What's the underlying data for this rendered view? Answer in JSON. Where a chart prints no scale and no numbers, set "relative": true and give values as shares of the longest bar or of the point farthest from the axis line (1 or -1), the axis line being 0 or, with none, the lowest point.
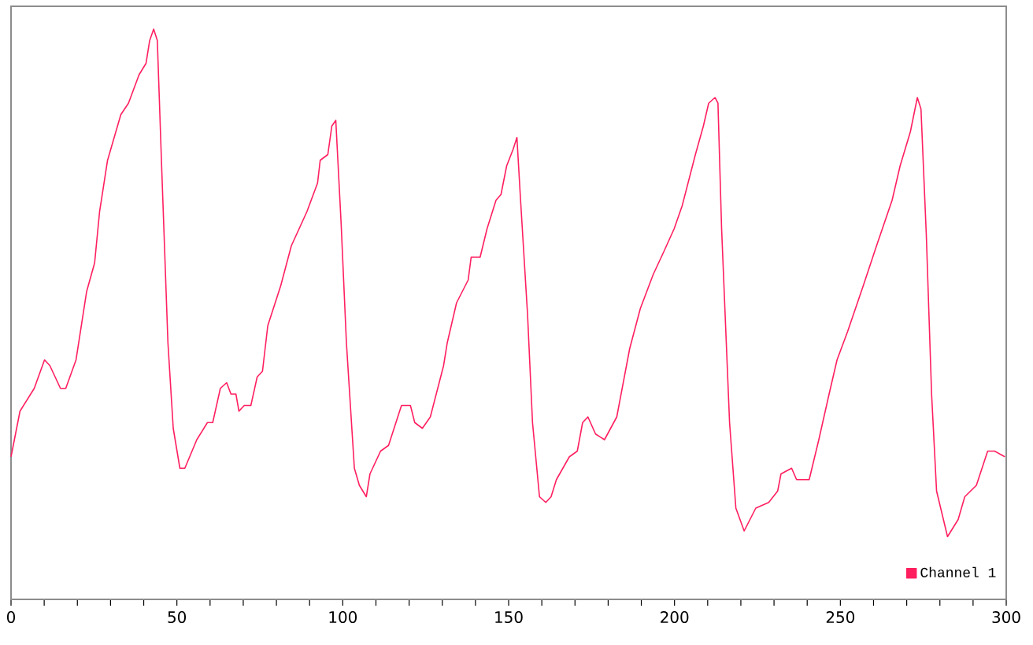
{
  "chart_data": {
    "type": "line",
    "relative": true,
    "legend": "bottom right",
    "marker": "none",
    "line_style": "solid",
    "xlim": [
      0,
      300
    ],
    "xticks": [
      0,
      {
        "value": 10,
        "label": null
      },
      {
        "value": 20,
        "label": null
      },
      {
        "value": 30,
        "label": null
      },
      {
        "value": 40,
        "label": null
      },
      50,
      {
        "value": 60,
        "label": null
      },
      {
        "value": 70,
        "label": null
      },
      {
        "value": 80,
        "label": null
      },
      {
        "value": 90,
        "label": null
      },
      100,
      {
        "value": 110,
        "label": null
      },
      {
        "value": 120,
        "label": null
      },
      {
        "value": 130,
        "label": null
      },
      {
        "value": 140,
        "label": null
      },
      150,
      {
        "value": 160,
        "label": null
      },
      {
        "value": 170,
        "label": null
      },
      {
        "value": 180,
        "label": null
      },
      {
        "value": 190,
        "label": null
      },
      200,
      {
        "value": 210,
        "label": null
      },
      {
        "value": 220,
        "label": null
      },
      {
        "value": 230,
        "label": null
      },
      {
        "value": 240,
        "label": null
      },
      250,
      {
        "value": 260,
        "label": null
      },
      {
        "value": 270,
        "label": null
      },
      {
        "value": 280,
        "label": null
      },
      {
        "value": 290,
        "label": null
      },
      300
    ],
    "series": [
      {
        "name": "Channel 1",
        "color": "#ff1f5f",
        "x": [
          0,
          2.7,
          7,
          10.1,
          11.7,
          13.3,
          14.9,
          16.5,
          19.6,
          22.8,
          25.2,
          26.7,
          29.1,
          33.1,
          35.4,
          38.6,
          40.7,
          41.8,
          43,
          44.1,
          45.4,
          47.3,
          48.9,
          50.9,
          52.4,
          56,
          59.2,
          60.8,
          63.1,
          65,
          66.3,
          67.8,
          68.7,
          70.3,
          72.3,
          74.2,
          75.8,
          77.4,
          81.3,
          84.5,
          89.2,
          92.4,
          93.2,
          95.5,
          96.7,
          97.9,
          99.5,
          101.1,
          103.5,
          105,
          107.1,
          108.2,
          111.4,
          113.8,
          117.7,
          120.4,
          121.7,
          124,
          126.4,
          130.4,
          131.5,
          134.3,
          137.8,
          138.7,
          141.4,
          143.5,
          146.2,
          147.7,
          149.4,
          151.4,
          152.5,
          153.6,
          155.7,
          157.2,
          159.3,
          161.2,
          162.8,
          164.4,
          168.3,
          170.7,
          172.3,
          173.9,
          176.2,
          178.9,
          182.6,
          186.5,
          189.7,
          193.6,
          196.8,
          199.9,
          202.3,
          206.3,
          208.7,
          210.3,
          212.2,
          213.1,
          214.2,
          216.6,
          218.5,
          221,
          224.5,
          228.4,
          231.1,
          232.1,
          235.3,
          236.8,
          240.6,
          243.5,
          246.6,
          249,
          252.2,
          256.9,
          260.9,
          265.6,
          268,
          271.1,
          273.2,
          274.3,
          275.9,
          277.5,
          279,
          282.3,
          285.5,
          287.5,
          291,
          294.4,
          296.5,
          299.6
        ],
        "values": [
          0.25,
          0.33,
          0.37,
          0.42,
          0.41,
          0.39,
          0.37,
          0.37,
          0.42,
          0.54,
          0.59,
          0.68,
          0.77,
          0.85,
          0.87,
          0.92,
          0.94,
          0.98,
          1.0,
          0.98,
          0.76,
          0.45,
          0.3,
          0.23,
          0.23,
          0.28,
          0.31,
          0.31,
          0.37,
          0.38,
          0.36,
          0.36,
          0.33,
          0.34,
          0.34,
          0.39,
          0.4,
          0.48,
          0.55,
          0.62,
          0.68,
          0.73,
          0.77,
          0.78,
          0.83,
          0.84,
          0.66,
          0.45,
          0.23,
          0.2,
          0.18,
          0.22,
          0.26,
          0.27,
          0.34,
          0.34,
          0.31,
          0.3,
          0.32,
          0.41,
          0.45,
          0.52,
          0.56,
          0.6,
          0.6,
          0.65,
          0.7,
          0.71,
          0.76,
          0.79,
          0.81,
          0.7,
          0.5,
          0.31,
          0.18,
          0.17,
          0.18,
          0.21,
          0.25,
          0.26,
          0.31,
          0.32,
          0.29,
          0.28,
          0.32,
          0.44,
          0.51,
          0.57,
          0.61,
          0.65,
          0.69,
          0.78,
          0.83,
          0.87,
          0.88,
          0.87,
          0.65,
          0.31,
          0.16,
          0.12,
          0.16,
          0.17,
          0.19,
          0.22,
          0.23,
          0.21,
          0.21,
          0.28,
          0.36,
          0.42,
          0.47,
          0.55,
          0.62,
          0.7,
          0.76,
          0.82,
          0.88,
          0.86,
          0.64,
          0.36,
          0.19,
          0.11,
          0.14,
          0.18,
          0.2,
          0.26,
          0.26,
          0.25
        ]
      }
    ]
  }
}
